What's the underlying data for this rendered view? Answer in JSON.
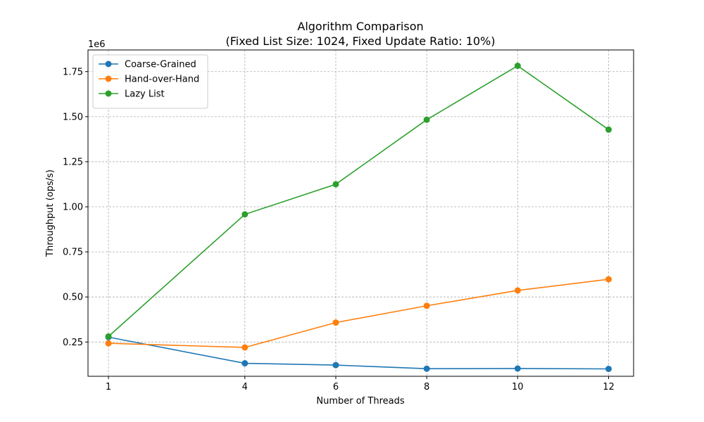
{
  "chart_data": {
    "type": "line",
    "title": "Algorithm Comparison",
    "subtitle": "(Fixed List Size: 1024, Fixed Update Ratio: 10%)",
    "xlabel": "Number of Threads",
    "ylabel": "Throughput (ops/s)",
    "y_offset_label": "1e6",
    "x": [
      1,
      4,
      6,
      8,
      10,
      12
    ],
    "x_tick_labels": [
      "1",
      "4",
      "6",
      "8",
      "10",
      "12"
    ],
    "y_ticks": [
      0.25,
      0.5,
      0.75,
      1.0,
      1.25,
      1.5,
      1.75
    ],
    "y_tick_labels": [
      "0.25",
      "0.50",
      "0.75",
      "1.00",
      "1.25",
      "1.50",
      "1.75"
    ],
    "xlim": [
      0.55,
      12.55
    ],
    "ylim": [
      0.06,
      1.87
    ],
    "grid": true,
    "legend_position": "upper-left",
    "series": [
      {
        "name": "Coarse-Grained",
        "color": "#1f77b4",
        "marker": "circle",
        "values": [
          0.277,
          0.132,
          0.122,
          0.102,
          0.103,
          0.101
        ]
      },
      {
        "name": "Hand-over-Hand",
        "color": "#ff7f0e",
        "marker": "circle",
        "values": [
          0.243,
          0.22,
          0.358,
          0.451,
          0.536,
          0.598
        ]
      },
      {
        "name": "Lazy List",
        "color": "#2ca02c",
        "marker": "circle",
        "values": [
          0.281,
          0.958,
          1.125,
          1.483,
          1.782,
          1.428
        ]
      }
    ]
  }
}
